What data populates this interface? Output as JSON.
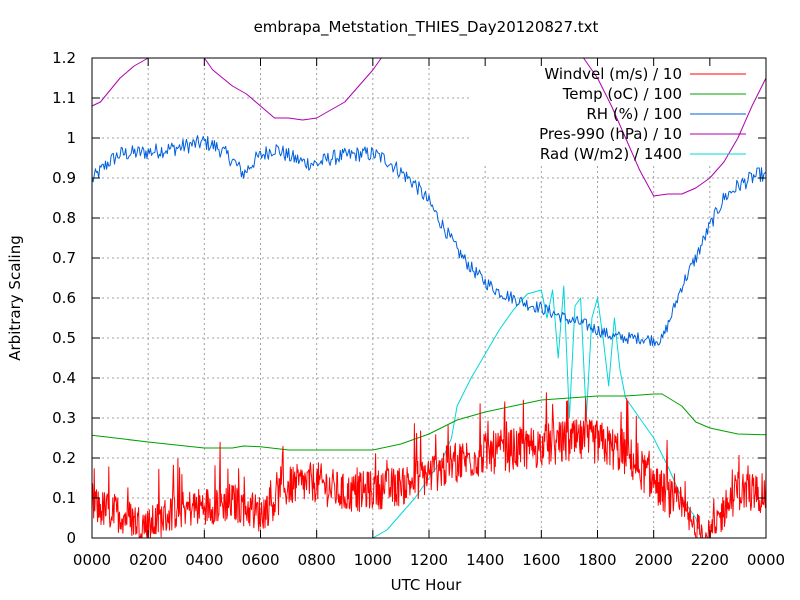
{
  "chart_data": {
    "type": "line",
    "title": "embrapa_Metstation_THIES_Day20120827.txt",
    "xlabel": "UTC Hour",
    "ylabel": "Arbitrary Scaling",
    "xlim": [
      0,
      2400
    ],
    "ylim": [
      0,
      1.2
    ],
    "x_ticks": [
      "0000",
      "0200",
      "0400",
      "0600",
      "0800",
      "1000",
      "1200",
      "1400",
      "1600",
      "1800",
      "2000",
      "2200",
      "0000"
    ],
    "y_ticks": [
      "0",
      "0.1",
      "0.2",
      "0.3",
      "0.4",
      "0.5",
      "0.6",
      "0.7",
      "0.8",
      "0.9",
      "1",
      "1.1",
      "1.2"
    ],
    "grid": true,
    "legend_position": "top-right",
    "series": [
      {
        "name": "Windvel (m/s) / 10",
        "color": "#ff0000",
        "noise": 0.045,
        "points": [
          [
            0,
            0.08
          ],
          [
            100,
            0.06
          ],
          [
            200,
            0.03
          ],
          [
            300,
            0.07
          ],
          [
            400,
            0.08
          ],
          [
            500,
            0.09
          ],
          [
            600,
            0.06
          ],
          [
            700,
            0.13
          ],
          [
            800,
            0.14
          ],
          [
            900,
            0.11
          ],
          [
            1000,
            0.12
          ],
          [
            1100,
            0.13
          ],
          [
            1200,
            0.16
          ],
          [
            1300,
            0.19
          ],
          [
            1400,
            0.21
          ],
          [
            1500,
            0.22
          ],
          [
            1600,
            0.23
          ],
          [
            1700,
            0.24
          ],
          [
            1800,
            0.24
          ],
          [
            1900,
            0.21
          ],
          [
            2000,
            0.14
          ],
          [
            2100,
            0.07
          ],
          [
            2150,
            0.02
          ],
          [
            2200,
            0.0
          ],
          [
            2250,
            0.07
          ],
          [
            2300,
            0.12
          ],
          [
            2400,
            0.11
          ]
        ]
      },
      {
        "name": "Temp (oC) / 100",
        "color": "#00a000",
        "noise": 0.0,
        "points": [
          [
            0,
            0.257
          ],
          [
            200,
            0.24
          ],
          [
            400,
            0.225
          ],
          [
            500,
            0.225
          ],
          [
            540,
            0.23
          ],
          [
            600,
            0.228
          ],
          [
            700,
            0.22
          ],
          [
            1000,
            0.22
          ],
          [
            1100,
            0.235
          ],
          [
            1200,
            0.26
          ],
          [
            1300,
            0.295
          ],
          [
            1400,
            0.315
          ],
          [
            1500,
            0.33
          ],
          [
            1600,
            0.345
          ],
          [
            1700,
            0.35
          ],
          [
            1800,
            0.355
          ],
          [
            1900,
            0.355
          ],
          [
            2000,
            0.36
          ],
          [
            2030,
            0.36
          ],
          [
            2100,
            0.33
          ],
          [
            2150,
            0.29
          ],
          [
            2200,
            0.275
          ],
          [
            2300,
            0.26
          ],
          [
            2400,
            0.258
          ]
        ]
      },
      {
        "name": "RH (%) / 100",
        "color": "#0060dd",
        "noise": 0.01,
        "points": [
          [
            0,
            0.895
          ],
          [
            60,
            0.94
          ],
          [
            100,
            0.96
          ],
          [
            200,
            0.965
          ],
          [
            300,
            0.975
          ],
          [
            400,
            0.99
          ],
          [
            450,
            0.975
          ],
          [
            500,
            0.945
          ],
          [
            540,
            0.91
          ],
          [
            580,
            0.945
          ],
          [
            600,
            0.955
          ],
          [
            650,
            0.975
          ],
          [
            700,
            0.955
          ],
          [
            750,
            0.94
          ],
          [
            800,
            0.935
          ],
          [
            850,
            0.95
          ],
          [
            900,
            0.955
          ],
          [
            950,
            0.96
          ],
          [
            1000,
            0.96
          ],
          [
            1050,
            0.945
          ],
          [
            1100,
            0.915
          ],
          [
            1150,
            0.885
          ],
          [
            1200,
            0.84
          ],
          [
            1250,
            0.78
          ],
          [
            1300,
            0.72
          ],
          [
            1350,
            0.675
          ],
          [
            1400,
            0.64
          ],
          [
            1450,
            0.615
          ],
          [
            1500,
            0.6
          ],
          [
            1550,
            0.585
          ],
          [
            1600,
            0.575
          ],
          [
            1650,
            0.56
          ],
          [
            1700,
            0.545
          ],
          [
            1750,
            0.535
          ],
          [
            1800,
            0.52
          ],
          [
            1850,
            0.505
          ],
          [
            1900,
            0.5
          ],
          [
            1950,
            0.5
          ],
          [
            2000,
            0.495
          ],
          [
            2030,
            0.495
          ],
          [
            2060,
            0.55
          ],
          [
            2100,
            0.63
          ],
          [
            2150,
            0.7
          ],
          [
            2200,
            0.78
          ],
          [
            2250,
            0.85
          ],
          [
            2300,
            0.88
          ],
          [
            2350,
            0.9
          ],
          [
            2380,
            0.91
          ],
          [
            2400,
            0.9
          ]
        ]
      },
      {
        "name": "Pres-990 (hPa) / 10",
        "color": "#b000b0",
        "noise": 0.0,
        "points": [
          [
            0,
            1.08
          ],
          [
            30,
            1.09
          ],
          [
            100,
            1.15
          ],
          [
            150,
            1.18
          ],
          [
            200,
            1.2
          ],
          [
            400,
            1.2
          ],
          [
            430,
            1.17
          ],
          [
            500,
            1.13
          ],
          [
            550,
            1.11
          ],
          [
            600,
            1.08
          ],
          [
            650,
            1.05
          ],
          [
            700,
            1.05
          ],
          [
            750,
            1.045
          ],
          [
            800,
            1.05
          ],
          [
            850,
            1.07
          ],
          [
            900,
            1.09
          ],
          [
            950,
            1.13
          ],
          [
            1000,
            1.17
          ],
          [
            1030,
            1.2
          ],
          [
            1750,
            1.2
          ],
          [
            1800,
            1.15
          ],
          [
            1850,
            1.08
          ],
          [
            1900,
            1.0
          ],
          [
            1950,
            0.92
          ],
          [
            2000,
            0.855
          ],
          [
            2050,
            0.86
          ],
          [
            2100,
            0.86
          ],
          [
            2150,
            0.875
          ],
          [
            2200,
            0.9
          ],
          [
            2250,
            0.94
          ],
          [
            2300,
            1.0
          ],
          [
            2350,
            1.08
          ],
          [
            2400,
            1.15
          ]
        ]
      },
      {
        "name": "Rad (W/m2) / 1400",
        "color": "#00d8d8",
        "noise": 0.0,
        "points": [
          [
            0,
            0.0
          ],
          [
            1000,
            0.0
          ],
          [
            1050,
            0.02
          ],
          [
            1100,
            0.06
          ],
          [
            1150,
            0.1
          ],
          [
            1200,
            0.15
          ],
          [
            1250,
            0.2
          ],
          [
            1280,
            0.25
          ],
          [
            1300,
            0.33
          ],
          [
            1350,
            0.4
          ],
          [
            1400,
            0.46
          ],
          [
            1450,
            0.52
          ],
          [
            1500,
            0.57
          ],
          [
            1550,
            0.61
          ],
          [
            1600,
            0.62
          ],
          [
            1620,
            0.55
          ],
          [
            1640,
            0.62
          ],
          [
            1660,
            0.45
          ],
          [
            1680,
            0.63
          ],
          [
            1700,
            0.3
          ],
          [
            1720,
            0.58
          ],
          [
            1740,
            0.6
          ],
          [
            1760,
            0.3
          ],
          [
            1780,
            0.55
          ],
          [
            1800,
            0.6
          ],
          [
            1820,
            0.5
          ],
          [
            1840,
            0.38
          ],
          [
            1860,
            0.55
          ],
          [
            1880,
            0.42
          ],
          [
            1900,
            0.35
          ],
          [
            1950,
            0.3
          ],
          [
            2000,
            0.25
          ],
          [
            2050,
            0.18
          ],
          [
            2100,
            0.1
          ],
          [
            2150,
            0.05
          ],
          [
            2170,
            0.0
          ],
          [
            2400,
            0.0
          ]
        ]
      }
    ]
  }
}
